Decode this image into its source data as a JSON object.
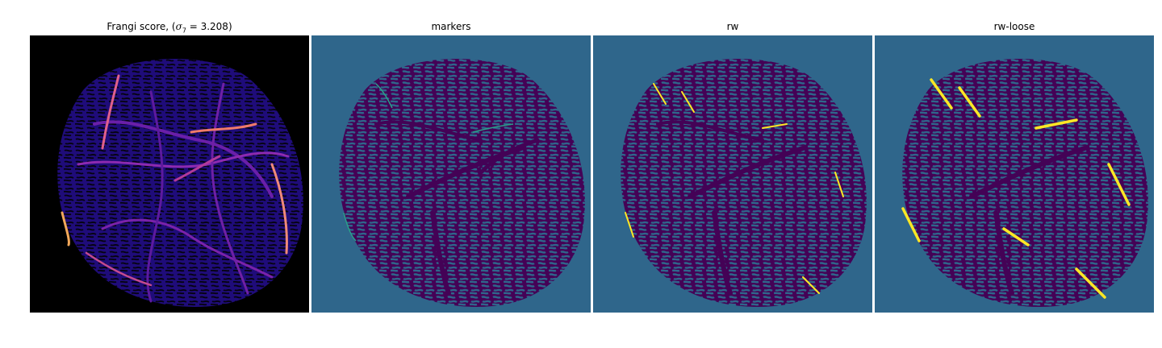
{
  "figure": {
    "panels": [
      {
        "id": "frangi",
        "title_prefix": "Frangi score, (",
        "title_symbol": "σ",
        "title_subscript": "7",
        "title_suffix": " = 3.208)",
        "colormap": "magma",
        "background": "#000000",
        "tissue_color": "#1f0c7a"
      },
      {
        "id": "markers",
        "title": "markers",
        "colormap": "viridis",
        "background": "#2f668b",
        "tissue_color": "#440256"
      },
      {
        "id": "rw",
        "title": "rw",
        "colormap": "viridis",
        "background": "#2f668b",
        "tissue_color": "#440256"
      },
      {
        "id": "rw-loose",
        "title": "rw-loose",
        "colormap": "viridis",
        "background": "#2f668b",
        "tissue_color": "#440256"
      }
    ]
  }
}
